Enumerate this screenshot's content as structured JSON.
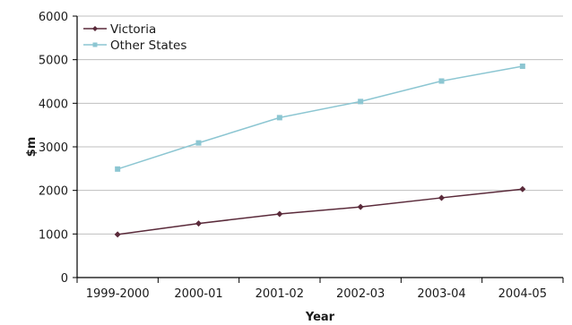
{
  "chart_data": {
    "type": "line",
    "xlabel": "Year",
    "ylabel": "$m",
    "categories": [
      "1999-2000",
      "2000-01",
      "2001-02",
      "2002-03",
      "2003-04",
      "2004-05"
    ],
    "ylim": [
      0,
      6000
    ],
    "yticks": [
      "0",
      "1000",
      "2000",
      "3000",
      "4000",
      "5000",
      "6000"
    ],
    "grid": true,
    "legend_position": "top-left",
    "series": [
      {
        "name": "Victoria",
        "color": "#5a2a3a",
        "marker": "diamond",
        "values": [
          990,
          1240,
          1460,
          1620,
          1830,
          2030
        ]
      },
      {
        "name": "Other States",
        "color": "#8cc6d2",
        "marker": "square",
        "values": [
          2490,
          3090,
          3670,
          4040,
          4510,
          4850
        ]
      }
    ]
  }
}
